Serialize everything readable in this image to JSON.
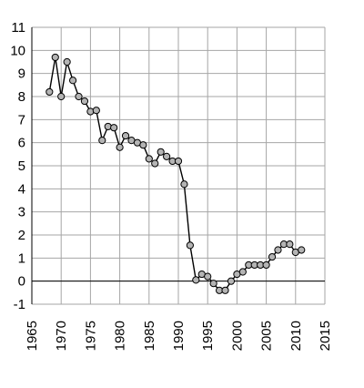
{
  "chart_data": {
    "type": "line",
    "title": "",
    "xlabel": "",
    "ylabel": "",
    "xlim": [
      1965,
      2015
    ],
    "ylim": [
      -1,
      11
    ],
    "xticks": [
      1965,
      1970,
      1975,
      1980,
      1985,
      1990,
      1995,
      2000,
      2005,
      2010,
      2015
    ],
    "yticks": [
      -1,
      0,
      1,
      2,
      3,
      4,
      5,
      6,
      7,
      8,
      9,
      10,
      11
    ],
    "grid": true,
    "legend": "none",
    "colors": {
      "line": "#000000",
      "marker_fill": "#b4b4b4",
      "grid": "#a6a6a6"
    },
    "series": [
      {
        "x": [
          1968,
          1969,
          1970,
          1971,
          1972,
          1973,
          1974,
          1975,
          1976,
          1977,
          1978,
          1979,
          1980,
          1981,
          1982,
          1983,
          1984,
          1985,
          1986,
          1987,
          1988,
          1989,
          1990,
          1991,
          1992,
          1993,
          1994,
          1995,
          1996,
          1997,
          1998,
          1999,
          2000,
          2001,
          2002,
          2003,
          2004,
          2005,
          2006,
          2007,
          2008,
          2009,
          2010,
          2011
        ],
        "y": [
          8.2,
          9.7,
          8.0,
          9.5,
          8.7,
          8.0,
          7.8,
          7.35,
          7.4,
          6.1,
          6.7,
          6.65,
          5.8,
          6.3,
          6.1,
          6.0,
          5.9,
          5.3,
          5.1,
          5.6,
          5.4,
          5.2,
          5.2,
          4.2,
          1.55,
          0.05,
          0.3,
          0.2,
          -0.1,
          -0.4,
          -0.4,
          0.0,
          0.3,
          0.4,
          0.7,
          0.7,
          0.7,
          0.7,
          1.05,
          1.35,
          1.6,
          1.6,
          1.25,
          1.35
        ]
      }
    ]
  }
}
